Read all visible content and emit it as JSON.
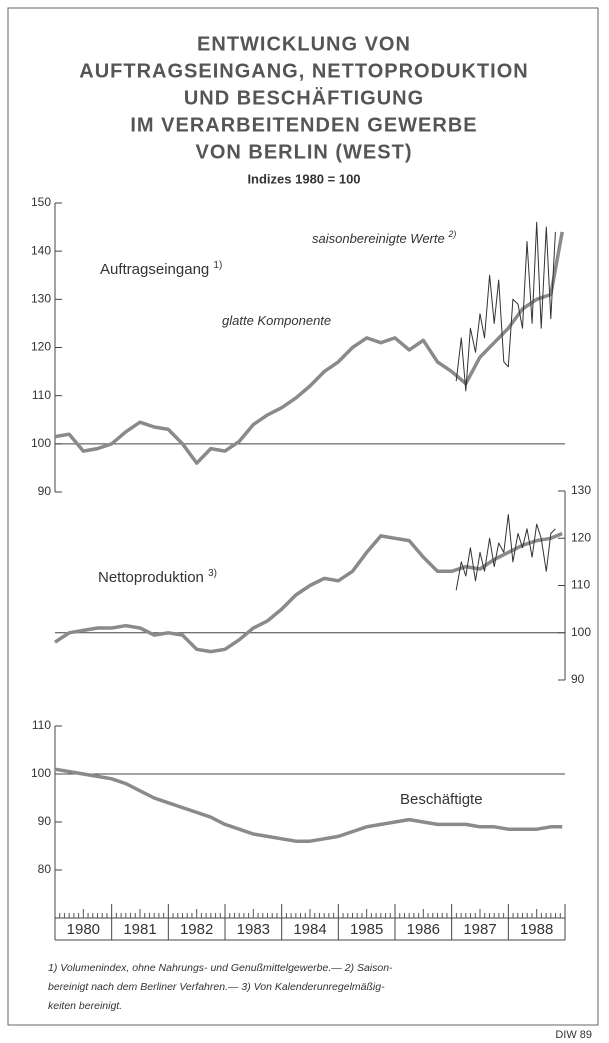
{
  "header": {
    "title": [
      "ENTWICKLUNG VON",
      "AUFTRAGSEINGANG, NETTOPRODUKTION",
      "UND BESCHÄFTIGUNG",
      "IM VERARBEITENDEN GEWERBE",
      "VON BERLIN (WEST)"
    ],
    "subtitle": "Indizes 1980 = 100"
  },
  "x_axis": {
    "xlim": [
      1980,
      1989
    ],
    "xticks": [
      1980,
      1981,
      1982,
      1983,
      1984,
      1985,
      1986,
      1987,
      1988
    ]
  },
  "chart_data": [
    {
      "type": "line",
      "label": "Auftragseingang",
      "label_note": "1)",
      "ylim": [
        90,
        150
      ],
      "yticks": [
        90,
        100,
        110,
        120,
        130,
        140,
        150
      ],
      "axis_side": "left",
      "hline": 100,
      "series": [
        {
          "name": "glatte Komponente",
          "color": "#8a8a8a",
          "x": [
            1980,
            1980.25,
            1980.5,
            1980.75,
            1981,
            1981.25,
            1981.5,
            1981.75,
            1982,
            1982.25,
            1982.5,
            1982.75,
            1983,
            1983.25,
            1983.5,
            1983.75,
            1984,
            1984.25,
            1984.5,
            1984.75,
            1985,
            1985.25,
            1985.5,
            1985.75,
            1986,
            1986.25,
            1986.5,
            1986.75,
            1987,
            1987.25,
            1987.5,
            1987.75,
            1988,
            1988.25,
            1988.5,
            1988.75,
            1988.95
          ],
          "values": [
            101.5,
            102,
            98.5,
            99,
            100,
            102.5,
            104.5,
            103.5,
            103,
            100,
            96,
            99,
            98.5,
            100.5,
            104,
            106,
            107.5,
            109.5,
            112,
            115,
            117,
            120,
            122,
            121,
            122,
            119.5,
            121.5,
            117,
            115,
            112.5,
            118,
            121,
            124,
            128,
            130,
            131,
            144
          ]
        },
        {
          "name": "saisonbereinigte Werte",
          "name_note": "2)",
          "color": "#333333",
          "x": [
            1987.08,
            1987.17,
            1987.25,
            1987.33,
            1987.42,
            1987.5,
            1987.58,
            1987.67,
            1987.75,
            1987.83,
            1987.92,
            1988,
            1988.08,
            1988.17,
            1988.25,
            1988.33,
            1988.42,
            1988.5,
            1988.58,
            1988.67,
            1988.75,
            1988.83
          ],
          "values": [
            113,
            122,
            111,
            124,
            119,
            127,
            122,
            135,
            125,
            134,
            117,
            116,
            130,
            129,
            124,
            142,
            125,
            146,
            124,
            145,
            126,
            144
          ]
        }
      ]
    },
    {
      "type": "line",
      "label": "Nettoproduktion",
      "label_note": "3)",
      "ylim": [
        90,
        130
      ],
      "yticks": [
        90,
        100,
        110,
        120,
        130
      ],
      "axis_side": "right",
      "hline": 100,
      "series": [
        {
          "name": "glatte Komponente",
          "color": "#8a8a8a",
          "x": [
            1980,
            1980.25,
            1980.5,
            1980.75,
            1981,
            1981.25,
            1981.5,
            1981.75,
            1982,
            1982.25,
            1982.5,
            1982.75,
            1983,
            1983.25,
            1983.5,
            1983.75,
            1984,
            1984.25,
            1984.5,
            1984.75,
            1985,
            1985.25,
            1985.5,
            1985.75,
            1986,
            1986.25,
            1986.5,
            1986.75,
            1987,
            1987.25,
            1987.5,
            1987.75,
            1988,
            1988.25,
            1988.5,
            1988.75,
            1988.95
          ],
          "values": [
            98,
            100,
            100.5,
            101,
            101,
            101.5,
            101,
            99.5,
            100,
            99.5,
            96.5,
            96,
            96.5,
            98.5,
            101,
            102.5,
            105,
            108,
            110,
            111.5,
            111,
            113,
            117,
            120.5,
            120,
            119.5,
            116,
            113,
            113,
            114,
            113.5,
            115.5,
            117,
            118.5,
            119.5,
            120,
            121
          ]
        },
        {
          "name": "saisonbereinigte Werte",
          "color": "#333333",
          "x": [
            1987.08,
            1987.17,
            1987.25,
            1987.33,
            1987.42,
            1987.5,
            1987.58,
            1987.67,
            1987.75,
            1987.83,
            1987.92,
            1988,
            1988.08,
            1988.17,
            1988.25,
            1988.33,
            1988.42,
            1988.5,
            1988.58,
            1988.67,
            1988.75,
            1988.83
          ],
          "values": [
            109,
            115,
            112,
            118,
            111,
            117,
            113,
            120,
            114,
            119,
            117,
            125,
            115,
            121,
            118,
            122,
            116,
            123,
            120,
            113,
            121,
            122
          ]
        }
      ]
    },
    {
      "type": "line",
      "label": "Beschäftigte",
      "ylim": [
        70,
        110
      ],
      "yticks": [
        80,
        90,
        100,
        110
      ],
      "axis_side": "left",
      "hline": 100,
      "series": [
        {
          "name": "Beschäftigte",
          "color": "#8a8a8a",
          "x": [
            1980,
            1980.25,
            1980.5,
            1980.75,
            1981,
            1981.25,
            1981.5,
            1981.75,
            1982,
            1982.25,
            1982.5,
            1982.75,
            1983,
            1983.25,
            1983.5,
            1983.75,
            1984,
            1984.25,
            1984.5,
            1984.75,
            1985,
            1985.25,
            1985.5,
            1985.75,
            1986,
            1986.25,
            1986.5,
            1986.75,
            1987,
            1987.25,
            1987.5,
            1987.75,
            1988,
            1988.25,
            1988.5,
            1988.75,
            1988.95
          ],
          "values": [
            101,
            100.5,
            100,
            99.5,
            99,
            98,
            96.5,
            95,
            94,
            93,
            92,
            91,
            89.5,
            88.5,
            87.5,
            87,
            86.5,
            86,
            86,
            86.5,
            87,
            88,
            89,
            89.5,
            90,
            90.5,
            90,
            89.5,
            89.5,
            89.5,
            89,
            89,
            88.5,
            88.5,
            88.5,
            89,
            89
          ]
        }
      ]
    }
  ],
  "footnotes": [
    "1) Volumenindex, ohne Nahrungs- und Genußmittelgewerbe.— 2) Saison-",
    "bereinigt nach dem Berliner Verfahren.— 3) Von Kalenderunregelmäßig-",
    "keiten bereinigt."
  ],
  "source": "DIW 89"
}
